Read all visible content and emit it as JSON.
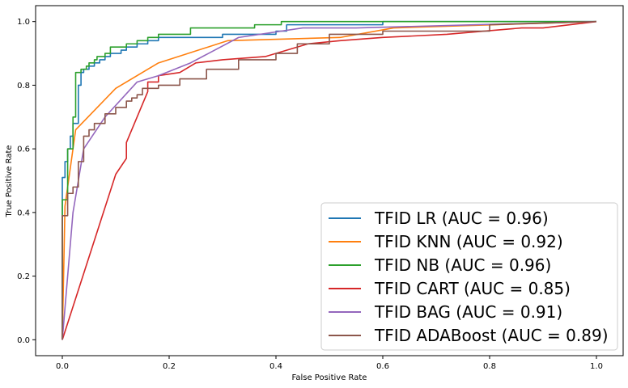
{
  "chart_data": {
    "type": "line",
    "title": "",
    "xlabel": "False Positive Rate",
    "ylabel": "True Positive Rate",
    "xlim": [
      -0.05,
      1.05
    ],
    "ylim": [
      -0.05,
      1.05
    ],
    "xticks": [
      "0.0",
      "0.2",
      "0.4",
      "0.6",
      "0.8",
      "1.0"
    ],
    "yticks": [
      "0.0",
      "0.2",
      "0.4",
      "0.6",
      "0.8",
      "1.0"
    ],
    "grid": false,
    "legend_position": "lower-right",
    "series": [
      {
        "name": "TFID LR (AUC = 0.96)",
        "color": "#1f77b4",
        "step": true,
        "x": [
          0,
          0,
          0.005,
          0.005,
          0.01,
          0.01,
          0.015,
          0.015,
          0.02,
          0.02,
          0.03,
          0.03,
          0.035,
          0.035,
          0.04,
          0.04,
          0.05,
          0.05,
          0.06,
          0.06,
          0.07,
          0.07,
          0.08,
          0.08,
          0.09,
          0.09,
          0.11,
          0.11,
          0.12,
          0.12,
          0.14,
          0.14,
          0.16,
          0.16,
          0.18,
          0.18,
          0.3,
          0.3,
          0.4,
          0.4,
          0.42,
          0.42,
          0.6,
          0.6,
          1.0
        ],
        "y": [
          0,
          0.51,
          0.51,
          0.56,
          0.56,
          0.6,
          0.6,
          0.64,
          0.64,
          0.68,
          0.68,
          0.8,
          0.8,
          0.84,
          0.84,
          0.85,
          0.85,
          0.86,
          0.86,
          0.87,
          0.87,
          0.88,
          0.88,
          0.89,
          0.89,
          0.9,
          0.9,
          0.91,
          0.91,
          0.92,
          0.92,
          0.93,
          0.93,
          0.94,
          0.94,
          0.95,
          0.95,
          0.96,
          0.96,
          0.97,
          0.97,
          0.99,
          0.99,
          1.0,
          1.0
        ]
      },
      {
        "name": "TFID KNN (AUC = 0.92)",
        "color": "#ff7f0e",
        "step": false,
        "x": [
          0,
          0.005,
          0.025,
          0.1,
          0.18,
          0.31,
          0.52,
          0.62,
          1.0
        ],
        "y": [
          0,
          0.42,
          0.66,
          0.79,
          0.87,
          0.94,
          0.95,
          0.98,
          1.0
        ]
      },
      {
        "name": "TFID NB (AUC = 0.96)",
        "color": "#2ca02c",
        "step": true,
        "x": [
          0,
          0,
          0.01,
          0.01,
          0.02,
          0.02,
          0.025,
          0.025,
          0.035,
          0.035,
          0.045,
          0.045,
          0.05,
          0.05,
          0.06,
          0.06,
          0.065,
          0.065,
          0.08,
          0.08,
          0.09,
          0.09,
          0.12,
          0.12,
          0.14,
          0.14,
          0.16,
          0.16,
          0.18,
          0.18,
          0.24,
          0.24,
          0.36,
          0.36,
          0.41,
          0.41,
          0.57,
          0.57,
          1.0
        ],
        "y": [
          0,
          0.44,
          0.44,
          0.6,
          0.6,
          0.7,
          0.7,
          0.84,
          0.84,
          0.85,
          0.85,
          0.86,
          0.86,
          0.87,
          0.87,
          0.88,
          0.88,
          0.89,
          0.89,
          0.9,
          0.9,
          0.92,
          0.92,
          0.93,
          0.93,
          0.94,
          0.94,
          0.95,
          0.95,
          0.96,
          0.96,
          0.98,
          0.98,
          0.99,
          0.99,
          1.0,
          1.0,
          1.0,
          1.0
        ]
      },
      {
        "name": "TFID CART (AUC = 0.85)",
        "color": "#d62728",
        "step": false,
        "x": [
          0,
          0.1,
          0.12,
          0.12,
          0.16,
          0.16,
          0.18,
          0.18,
          0.22,
          0.25,
          0.3,
          0.38,
          0.46,
          0.52,
          0.6,
          0.72,
          0.86,
          0.9,
          1.0
        ],
        "y": [
          0,
          0.52,
          0.57,
          0.62,
          0.78,
          0.81,
          0.81,
          0.83,
          0.84,
          0.87,
          0.88,
          0.89,
          0.93,
          0.94,
          0.95,
          0.96,
          0.98,
          0.98,
          1.0
        ]
      },
      {
        "name": "TFID BAG (AUC = 0.91)",
        "color": "#9467bd",
        "step": false,
        "x": [
          0,
          0.02,
          0.04,
          0.08,
          0.14,
          0.18,
          0.24,
          0.33,
          0.45,
          0.55,
          1.0
        ],
        "y": [
          0,
          0.4,
          0.6,
          0.7,
          0.81,
          0.83,
          0.87,
          0.95,
          0.98,
          0.98,
          1.0
        ]
      },
      {
        "name": "TFID ADABoost (AUC = 0.89)",
        "color": "#8c564b",
        "step": true,
        "x": [
          0,
          0,
          0.01,
          0.01,
          0.02,
          0.02,
          0.03,
          0.03,
          0.04,
          0.04,
          0.05,
          0.05,
          0.06,
          0.06,
          0.08,
          0.08,
          0.1,
          0.1,
          0.12,
          0.12,
          0.13,
          0.13,
          0.14,
          0.14,
          0.15,
          0.15,
          0.18,
          0.18,
          0.22,
          0.22,
          0.27,
          0.27,
          0.33,
          0.33,
          0.4,
          0.4,
          0.44,
          0.44,
          0.5,
          0.5,
          0.6,
          0.6,
          0.8,
          0.8,
          1.0
        ],
        "y": [
          0,
          0.39,
          0.39,
          0.46,
          0.46,
          0.48,
          0.48,
          0.56,
          0.56,
          0.64,
          0.64,
          0.66,
          0.66,
          0.68,
          0.68,
          0.71,
          0.71,
          0.73,
          0.73,
          0.75,
          0.75,
          0.76,
          0.76,
          0.77,
          0.77,
          0.79,
          0.79,
          0.8,
          0.8,
          0.82,
          0.82,
          0.85,
          0.85,
          0.88,
          0.88,
          0.9,
          0.9,
          0.93,
          0.93,
          0.96,
          0.96,
          0.97,
          0.97,
          0.99,
          1.0
        ]
      }
    ]
  }
}
